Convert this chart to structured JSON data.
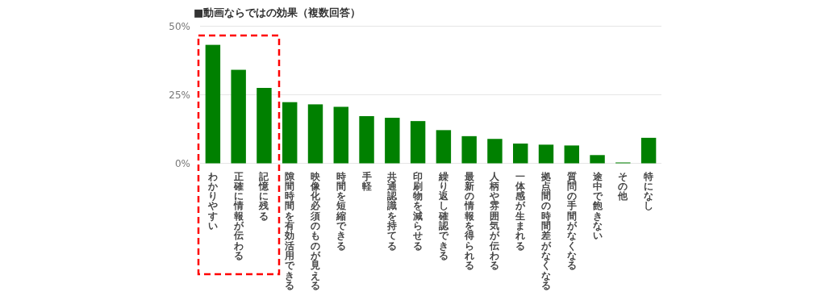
{
  "chart_data": {
    "type": "bar",
    "title": "■動画ならではの効果（複数回答）",
    "categories": [
      "わかりやすい",
      "正確に情報が伝わる",
      "記憶に残る",
      "隙間時間を有効活用できる",
      "映像化必須のものが見える",
      "時間を短縮できる",
      "手軽",
      "共通認識を持てる",
      "印刷物を減らせる",
      "繰り返し確認できる",
      "最新の情報を得られる",
      "人柄や雰囲気が伝わる",
      "一体感が生まれる",
      "拠点間の時間差がなくなる",
      "質問の手間がなくなる",
      "途中で飽きない",
      "その他",
      "特になし"
    ],
    "values": [
      43.2,
      34.1,
      27.5,
      22.3,
      21.5,
      20.6,
      17.2,
      16.6,
      15.4,
      12.1,
      9.9,
      8.9,
      7.2,
      6.8,
      6.5,
      3.0,
      0.3,
      9.3
    ],
    "color": "#008000",
    "ylim": [
      0,
      50
    ],
    "yticks": [
      {
        "value": 0,
        "label": "0%"
      },
      {
        "value": 25,
        "label": "25%"
      },
      {
        "value": 50,
        "label": "50%"
      }
    ],
    "grid": "y"
  }
}
